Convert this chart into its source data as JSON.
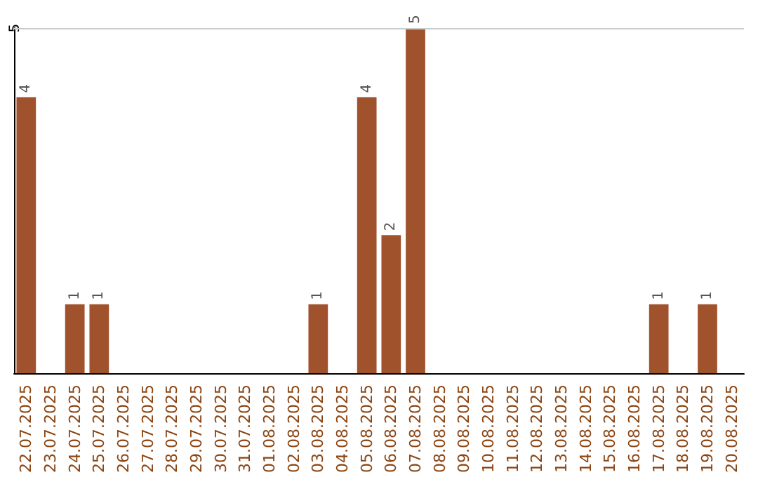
{
  "chart_data": {
    "type": "bar",
    "categories": [
      "22.07.2025",
      "23.07.2025",
      "24.07.2025",
      "25.07.2025",
      "26.07.2025",
      "27.07.2025",
      "28.07.2025",
      "29.07.2025",
      "30.07.2025",
      "31.07.2025",
      "01.08.2025",
      "02.08.2025",
      "03.08.2025",
      "04.08.2025",
      "05.08.2025",
      "06.08.2025",
      "07.08.2025",
      "08.08.2025",
      "09.08.2025",
      "10.08.2025",
      "11.08.2025",
      "12.08.2025",
      "13.08.2025",
      "14.08.2025",
      "15.08.2025",
      "16.08.2025",
      "17.08.2025",
      "18.08.2025",
      "19.08.2025",
      "20.08.2025"
    ],
    "values": [
      4,
      0,
      1,
      1,
      0,
      0,
      0,
      0,
      0,
      0,
      0,
      0,
      1,
      0,
      4,
      2,
      5,
      0,
      0,
      0,
      0,
      0,
      0,
      0,
      0,
      0,
      1,
      0,
      1,
      0
    ],
    "value_labels": [
      "4",
      null,
      "1",
      "1",
      null,
      null,
      null,
      null,
      null,
      null,
      null,
      null,
      "1",
      null,
      "4",
      "2",
      "5",
      null,
      null,
      null,
      null,
      null,
      null,
      null,
      null,
      null,
      "1",
      null,
      "1",
      null
    ],
    "color": "#a0522d",
    "ylim": [
      0,
      5
    ],
    "yticks": [
      5
    ],
    "ref_lines": [
      {
        "axis": "y",
        "value": 5,
        "color": "#cccccc"
      }
    ]
  }
}
